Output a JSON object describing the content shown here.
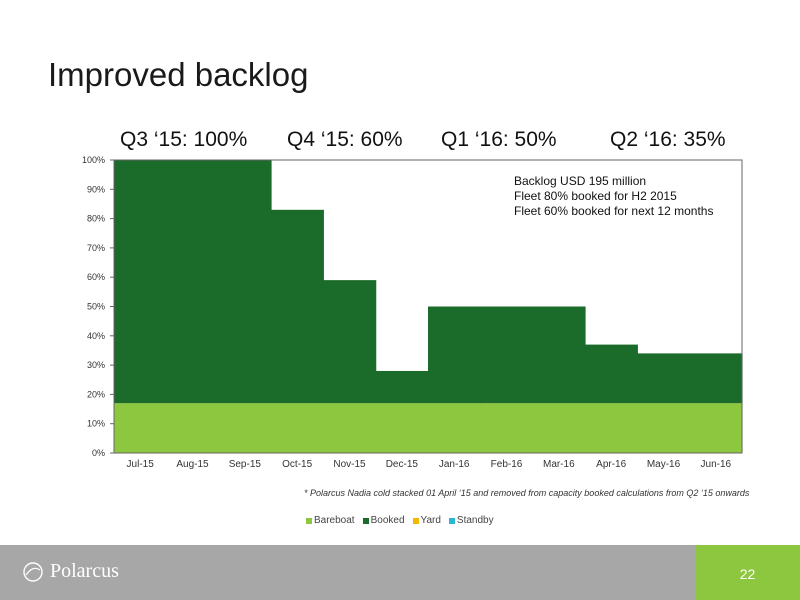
{
  "slide": {
    "title": "Improved backlog",
    "page_number": "22",
    "logo_text": "Polarcus"
  },
  "quarters": [
    {
      "label": "Q3 ‘15: 100%"
    },
    {
      "label": "Q4 ‘15: 60%"
    },
    {
      "label": "Q1 ‘16: 50%"
    },
    {
      "label": "Q2 ‘16: 35%"
    }
  ],
  "annotation": {
    "lines": [
      "Backlog USD 195 million",
      "Fleet 80% booked for H2 2015",
      "Fleet 60% booked for next 12 months"
    ]
  },
  "footnote": "* Polarcus Nadia cold stacked 01 April ‘15 and removed from capacity booked calculations from Q2 ‘15 onwards",
  "colors": {
    "bareboat": "#8dc63f",
    "booked": "#1b6b2a",
    "yard": "#f5b800",
    "standby": "#29b6d8",
    "footer": "#a7a7a7",
    "accent": "#8dc63f"
  },
  "chart_data": {
    "type": "area",
    "categories": [
      "Jul-15",
      "Aug-15",
      "Sep-15",
      "Oct-15",
      "Nov-15",
      "Dec-15",
      "Jan-16",
      "Feb-16",
      "Mar-16",
      "Apr-16",
      "May-16",
      "Jun-16"
    ],
    "series": [
      {
        "name": "Bareboat",
        "values": [
          17,
          17,
          17,
          17,
          17,
          17,
          17,
          17,
          17,
          17,
          17,
          17
        ]
      },
      {
        "name": "Booked",
        "values": [
          83,
          83,
          83,
          66,
          42,
          11,
          33,
          33,
          33,
          20,
          17,
          17
        ]
      },
      {
        "name": "Yard",
        "values": [
          0,
          0,
          0,
          0,
          0,
          0,
          0,
          0,
          0,
          0,
          0,
          0
        ]
      },
      {
        "name": "Standby",
        "values": [
          0,
          0,
          0,
          0,
          0,
          0,
          0,
          0,
          0,
          0,
          0,
          0
        ]
      }
    ],
    "ylim": [
      0,
      100
    ],
    "yticks": [
      "0%",
      "10%",
      "20%",
      "30%",
      "40%",
      "50%",
      "60%",
      "70%",
      "80%",
      "90%",
      "100%"
    ],
    "legend_position": "bottom",
    "grid": false
  }
}
